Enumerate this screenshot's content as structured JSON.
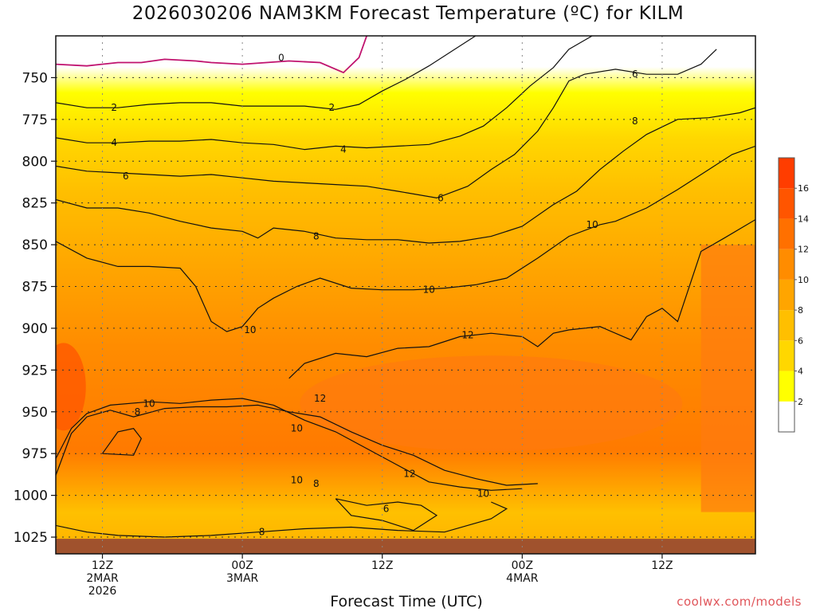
{
  "chart_data": {
    "type": "heatmap",
    "title": "2026030206 NAM3KM Forecast Temperature (ºC) for KILM",
    "xlabel": "Forecast Time (UTC)",
    "ylabel": "",
    "credit": "coolwx.com/models",
    "y_axis": {
      "unit": "hPa",
      "inverted": true,
      "range": [
        1035,
        725
      ],
      "ticks": [
        750,
        775,
        800,
        825,
        850,
        875,
        900,
        925,
        950,
        975,
        1000,
        1025
      ]
    },
    "x_axis": {
      "range_hours": [
        6,
        96
      ],
      "ticks": [
        {
          "hour": 12,
          "lines": [
            "12Z",
            "2MAR",
            "2026"
          ]
        },
        {
          "hour": 30,
          "lines": [
            "00Z",
            "3MAR"
          ]
        },
        {
          "hour": 48,
          "lines": [
            "12Z"
          ]
        },
        {
          "hour": 66,
          "lines": [
            "00Z",
            "4MAR"
          ]
        },
        {
          "hour": 84,
          "lines": [
            "12Z"
          ]
        }
      ]
    },
    "grid": "dotted",
    "colorbar": {
      "levels": [
        2,
        4,
        6,
        8,
        10,
        12,
        14,
        16
      ],
      "colors": [
        "#ffffff",
        "#ffff00",
        "#ffd700",
        "#ffbf00",
        "#ffa500",
        "#ff8c00",
        "#ff7000",
        "#ff5500",
        "#ff3d00"
      ]
    },
    "contour_labels": [
      "0",
      "2",
      "4",
      "6",
      "8",
      "10",
      "12"
    ],
    "ground_color": "#a0522d",
    "zero_line_color": "#c0136e",
    "contours": [
      {
        "level": 0,
        "color": "#c0136e",
        "points": [
          [
            6,
            742
          ],
          [
            10,
            743
          ],
          [
            14,
            741
          ],
          [
            17,
            741
          ],
          [
            20,
            739
          ],
          [
            24,
            740
          ],
          [
            26,
            741
          ],
          [
            30,
            742
          ],
          [
            36,
            740
          ],
          [
            40,
            741
          ],
          [
            43,
            747
          ],
          [
            45,
            738
          ],
          [
            46,
            725
          ]
        ]
      },
      {
        "level": 2,
        "color": "#111111",
        "points": [
          [
            6,
            765
          ],
          [
            10,
            768
          ],
          [
            14,
            768
          ],
          [
            18,
            766
          ],
          [
            22,
            765
          ],
          [
            26,
            765
          ],
          [
            30,
            767
          ],
          [
            34,
            767
          ],
          [
            38,
            767
          ],
          [
            42,
            769
          ],
          [
            45,
            766
          ],
          [
            48,
            758
          ],
          [
            51,
            751
          ],
          [
            54,
            743
          ],
          [
            57,
            734
          ],
          [
            60,
            725
          ]
        ]
      },
      {
        "level": 4,
        "color": "#111111",
        "points": [
          [
            6,
            786
          ],
          [
            10,
            789
          ],
          [
            14,
            789
          ],
          [
            18,
            788
          ],
          [
            22,
            788
          ],
          [
            26,
            787
          ],
          [
            30,
            789
          ],
          [
            34,
            790
          ],
          [
            38,
            793
          ],
          [
            42,
            791
          ],
          [
            46,
            792
          ],
          [
            50,
            791
          ],
          [
            54,
            790
          ],
          [
            58,
            785
          ],
          [
            61,
            779
          ],
          [
            64,
            768
          ],
          [
            67,
            755
          ],
          [
            70,
            744
          ],
          [
            72,
            733
          ],
          [
            75,
            725
          ]
        ]
      },
      {
        "level": 6,
        "color": "#111111",
        "points": [
          [
            6,
            803
          ],
          [
            10,
            806
          ],
          [
            14,
            807
          ],
          [
            18,
            808
          ],
          [
            22,
            809
          ],
          [
            26,
            808
          ],
          [
            30,
            810
          ],
          [
            34,
            812
          ],
          [
            38,
            813
          ],
          [
            42,
            814
          ],
          [
            46,
            815
          ],
          [
            50,
            818
          ],
          [
            55,
            822
          ],
          [
            59,
            815
          ],
          [
            62,
            805
          ],
          [
            65,
            796
          ],
          [
            68,
            782
          ],
          [
            70,
            768
          ],
          [
            72,
            752
          ],
          [
            74,
            748
          ],
          [
            78,
            745
          ],
          [
            82,
            748
          ],
          [
            86,
            748
          ],
          [
            89,
            742
          ],
          [
            91,
            733
          ]
        ]
      },
      {
        "level": 8,
        "color": "#111111",
        "points": [
          [
            6,
            823
          ],
          [
            10,
            828
          ],
          [
            14,
            828
          ],
          [
            18,
            831
          ],
          [
            22,
            836
          ],
          [
            26,
            840
          ],
          [
            30,
            842
          ],
          [
            32,
            846
          ],
          [
            34,
            840
          ],
          [
            38,
            842
          ],
          [
            42,
            846
          ],
          [
            46,
            847
          ],
          [
            50,
            847
          ],
          [
            54,
            849
          ],
          [
            58,
            848
          ],
          [
            62,
            845
          ],
          [
            66,
            839
          ],
          [
            70,
            826
          ],
          [
            73,
            818
          ],
          [
            76,
            805
          ],
          [
            79,
            794
          ],
          [
            82,
            784
          ],
          [
            86,
            775
          ],
          [
            90,
            774
          ],
          [
            94,
            771
          ],
          [
            96,
            768
          ]
        ]
      },
      {
        "level": 10,
        "color": "#111111",
        "points": [
          [
            6,
            848
          ],
          [
            10,
            858
          ],
          [
            14,
            863
          ],
          [
            18,
            863
          ],
          [
            22,
            864
          ],
          [
            24,
            875
          ],
          [
            26,
            896
          ],
          [
            28,
            902
          ],
          [
            30,
            899
          ],
          [
            32,
            888
          ],
          [
            34,
            882
          ],
          [
            37,
            875
          ],
          [
            40,
            870
          ],
          [
            44,
            876
          ],
          [
            48,
            877
          ],
          [
            52,
            877
          ],
          [
            56,
            876
          ],
          [
            60,
            874
          ],
          [
            64,
            870
          ],
          [
            68,
            858
          ],
          [
            72,
            845
          ],
          [
            76,
            838
          ],
          [
            78,
            836
          ],
          [
            82,
            828
          ],
          [
            86,
            817
          ],
          [
            90,
            805
          ],
          [
            93,
            796
          ],
          [
            96,
            791
          ]
        ]
      },
      {
        "level": 12,
        "color": "#111111",
        "points": [
          [
            36,
            930
          ],
          [
            38,
            921
          ],
          [
            42,
            915
          ],
          [
            46,
            917
          ],
          [
            50,
            912
          ],
          [
            54,
            911
          ],
          [
            58,
            905
          ],
          [
            62,
            903
          ],
          [
            66,
            905
          ],
          [
            68,
            911
          ],
          [
            70,
            903
          ],
          [
            72,
            901
          ],
          [
            76,
            899
          ],
          [
            80,
            907
          ],
          [
            82,
            893
          ],
          [
            84,
            888
          ],
          [
            86,
            896
          ],
          [
            89,
            854
          ],
          [
            92,
            846
          ],
          [
            96,
            835
          ]
        ]
      },
      {
        "level": 8,
        "color": "#111111",
        "points": [
          [
            6,
            988
          ],
          [
            8,
            963
          ],
          [
            10,
            953
          ],
          [
            13,
            949
          ],
          [
            16,
            953
          ],
          [
            20,
            948
          ],
          [
            24,
            947
          ],
          [
            28,
            947
          ],
          [
            32,
            946
          ],
          [
            36,
            950
          ],
          [
            40,
            953
          ],
          [
            44,
            962
          ],
          [
            48,
            970
          ],
          [
            52,
            976
          ],
          [
            56,
            985
          ],
          [
            60,
            990
          ],
          [
            64,
            994
          ],
          [
            68,
            993
          ]
        ]
      },
      {
        "level": 10,
        "color": "#111111",
        "points": [
          [
            6,
            978
          ],
          [
            8,
            960
          ],
          [
            10,
            951
          ],
          [
            13,
            946
          ],
          [
            18,
            944
          ],
          [
            22,
            945
          ],
          [
            26,
            943
          ],
          [
            30,
            942
          ],
          [
            34,
            946
          ],
          [
            38,
            955
          ],
          [
            42,
            962
          ],
          [
            46,
            972
          ],
          [
            50,
            982
          ],
          [
            54,
            992
          ],
          [
            58,
            995
          ],
          [
            62,
            997
          ],
          [
            66,
            996
          ]
        ]
      },
      {
        "level": 6,
        "color": "#111111",
        "points": [
          [
            42,
            1002
          ],
          [
            46,
            1006
          ],
          [
            50,
            1004
          ],
          [
            53,
            1006
          ],
          [
            55,
            1012
          ],
          [
            52,
            1021
          ],
          [
            48,
            1015
          ],
          [
            44,
            1012
          ],
          [
            42,
            1002
          ]
        ]
      },
      {
        "level": 8,
        "color": "#111111",
        "points": [
          [
            6,
            1018
          ],
          [
            10,
            1022
          ],
          [
            14,
            1024
          ],
          [
            20,
            1025
          ],
          [
            26,
            1024
          ],
          [
            32,
            1022
          ],
          [
            38,
            1020
          ],
          [
            44,
            1019
          ],
          [
            50,
            1021
          ],
          [
            56,
            1022
          ],
          [
            62,
            1014
          ],
          [
            64,
            1008
          ],
          [
            62,
            1004
          ]
        ]
      },
      {
        "level": 6,
        "color": "#111111",
        "points": [
          [
            12,
            975
          ],
          [
            14,
            962
          ],
          [
            16,
            960
          ],
          [
            17,
            966
          ],
          [
            16,
            976
          ],
          [
            12,
            975
          ]
        ]
      }
    ],
    "label_positions": [
      {
        "text": "0",
        "hour": 35,
        "p": 738
      },
      {
        "text": "2",
        "hour": 13.5,
        "p": 768
      },
      {
        "text": "2",
        "hour": 41.5,
        "p": 768
      },
      {
        "text": "4",
        "hour": 13.5,
        "p": 789
      },
      {
        "text": "4",
        "hour": 43,
        "p": 793
      },
      {
        "text": "6",
        "hour": 15,
        "p": 809
      },
      {
        "text": "6",
        "hour": 55.5,
        "p": 822
      },
      {
        "text": "6",
        "hour": 80.5,
        "p": 748
      },
      {
        "text": "8",
        "hour": 39.5,
        "p": 845
      },
      {
        "text": "8",
        "hour": 80.5,
        "p": 776
      },
      {
        "text": "8",
        "hour": 16.5,
        "p": 950
      },
      {
        "text": "8",
        "hour": 39.5,
        "p": 993
      },
      {
        "text": "8",
        "hour": 32.5,
        "p": 1022
      },
      {
        "text": "10",
        "hour": 31,
        "p": 901
      },
      {
        "text": "10",
        "hour": 54,
        "p": 877
      },
      {
        "text": "10",
        "hour": 75,
        "p": 838
      },
      {
        "text": "10",
        "hour": 18,
        "p": 945
      },
      {
        "text": "10",
        "hour": 37,
        "p": 960
      },
      {
        "text": "10",
        "hour": 37,
        "p": 991
      },
      {
        "text": "10",
        "hour": 61,
        "p": 999
      },
      {
        "text": "12",
        "hour": 59,
        "p": 904
      },
      {
        "text": "12",
        "hour": 40,
        "p": 942
      },
      {
        "text": "12",
        "hour": 51.5,
        "p": 987
      },
      {
        "text": "6",
        "hour": 48.5,
        "p": 1008
      }
    ]
  }
}
